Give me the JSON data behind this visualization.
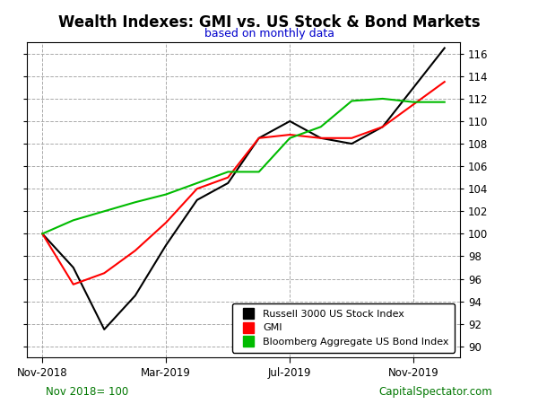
{
  "title": "Wealth Indexes: GMI vs. US Stock & Bond Markets",
  "subtitle": "based on monthly data",
  "footnote_left": "Nov 2018= 100",
  "footnote_right": "CapitalSpectator.com",
  "x_labels": [
    "Nov-2018",
    "Mar-2019",
    "Jul-2019",
    "Nov-2019"
  ],
  "x_tick_positions": [
    0,
    4,
    8,
    12
  ],
  "ylim": [
    89,
    117
  ],
  "yticks": [
    90,
    92,
    94,
    96,
    98,
    100,
    102,
    104,
    106,
    108,
    110,
    112,
    114,
    116
  ],
  "russell": [
    100.0,
    97.0,
    91.5,
    94.5,
    99.0,
    103.0,
    104.5,
    108.5,
    110.0,
    108.5,
    108.0,
    109.5,
    113.0,
    116.5
  ],
  "gmi": [
    100.0,
    95.5,
    96.5,
    98.5,
    101.0,
    104.0,
    105.0,
    108.5,
    108.8,
    108.5,
    108.5,
    109.5,
    111.5,
    113.5
  ],
  "bond": [
    100.0,
    101.2,
    102.0,
    102.8,
    103.5,
    104.5,
    105.5,
    105.5,
    108.5,
    109.5,
    111.8,
    112.0,
    111.7,
    111.7
  ],
  "russell_color": "#000000",
  "gmi_color": "#ff0000",
  "bond_color": "#00bb00",
  "background_color": "#ffffff",
  "plot_bg_color": "#ffffff",
  "grid_color": "#aaaaaa",
  "title_fontsize": 12,
  "subtitle_fontsize": 9,
  "tick_fontsize": 8.5,
  "footnote_fontsize": 8.5,
  "legend_labels": [
    "Russell 3000 US Stock Index",
    "GMI",
    "Bloomberg Aggregate US Bond Index"
  ],
  "line_width": 1.5
}
